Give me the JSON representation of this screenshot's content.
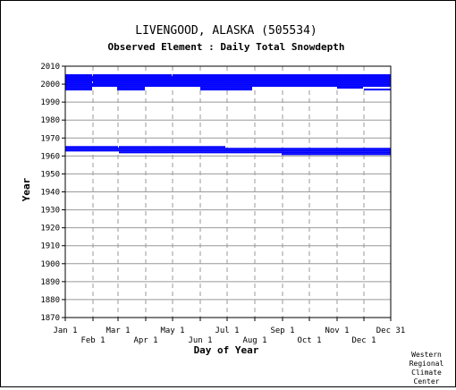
{
  "chart_data": {
    "type": "bar",
    "title": "LIVENGOOD, ALASKA   (505534)",
    "subtitle": "Observed Element : Daily Total Snowdepth",
    "xlabel": "Day of Year",
    "ylabel": "Year",
    "xlim": [
      1,
      365
    ],
    "ylim": [
      1870,
      2010
    ],
    "y_ticks": [
      1870,
      1880,
      1890,
      1900,
      1910,
      1920,
      1930,
      1940,
      1950,
      1960,
      1970,
      1980,
      1990,
      2000,
      2010
    ],
    "x_ticks_upper": [
      {
        "label": "Jan 1",
        "day": 1
      },
      {
        "label": "Mar 1",
        "day": 60
      },
      {
        "label": "May 1",
        "day": 121
      },
      {
        "label": "Jul 1",
        "day": 182
      },
      {
        "label": "Sep 1",
        "day": 244
      },
      {
        "label": "Nov 1",
        "day": 305
      },
      {
        "label": "Dec 31",
        "day": 365
      }
    ],
    "x_ticks_lower": [
      {
        "label": "Feb 1",
        "day": 32
      },
      {
        "label": "Apr 1",
        "day": 91
      },
      {
        "label": "Jun 1",
        "day": 152
      },
      {
        "label": "Aug 1",
        "day": 213
      },
      {
        "label": "Oct 1",
        "day": 274
      },
      {
        "label": "Dec 1",
        "day": 335
      }
    ],
    "grid": true,
    "bar_color": "#0000ff",
    "grid_color": "#999999",
    "series": [
      {
        "values": [
          {
            "year": 2005,
            "start": 1,
            "end": 31
          },
          {
            "year": 2005,
            "start": 32,
            "end": 120
          },
          {
            "year": 2005,
            "start": 121,
            "end": 365
          },
          {
            "year": 2004,
            "start": 1,
            "end": 365
          },
          {
            "year": 2003,
            "start": 1,
            "end": 365
          },
          {
            "year": 2002,
            "start": 1,
            "end": 365
          },
          {
            "year": 2001,
            "start": 1,
            "end": 31
          },
          {
            "year": 2001,
            "start": 32,
            "end": 365
          },
          {
            "year": 2000,
            "start": 1,
            "end": 365
          },
          {
            "year": 1999,
            "start": 1,
            "end": 365
          },
          {
            "year": 1998,
            "start": 1,
            "end": 31
          },
          {
            "year": 1998,
            "start": 59,
            "end": 90
          },
          {
            "year": 1998,
            "start": 152,
            "end": 210
          },
          {
            "year": 1998,
            "start": 305,
            "end": 334
          },
          {
            "year": 1997,
            "start": 1,
            "end": 31
          },
          {
            "year": 1997,
            "start": 59,
            "end": 90
          },
          {
            "year": 1997,
            "start": 152,
            "end": 210
          },
          {
            "year": 1997,
            "start": 335,
            "end": 365
          },
          {
            "year": 1965,
            "start": 1,
            "end": 60
          },
          {
            "year": 1965,
            "start": 61,
            "end": 180
          },
          {
            "year": 1964,
            "start": 1,
            "end": 365
          },
          {
            "year": 1963,
            "start": 1,
            "end": 365
          },
          {
            "year": 1962,
            "start": 61,
            "end": 365
          },
          {
            "year": 1961,
            "start": 243,
            "end": 365
          }
        ]
      }
    ]
  },
  "credit": [
    "Western",
    "Regional",
    "Climate",
    "Center"
  ]
}
